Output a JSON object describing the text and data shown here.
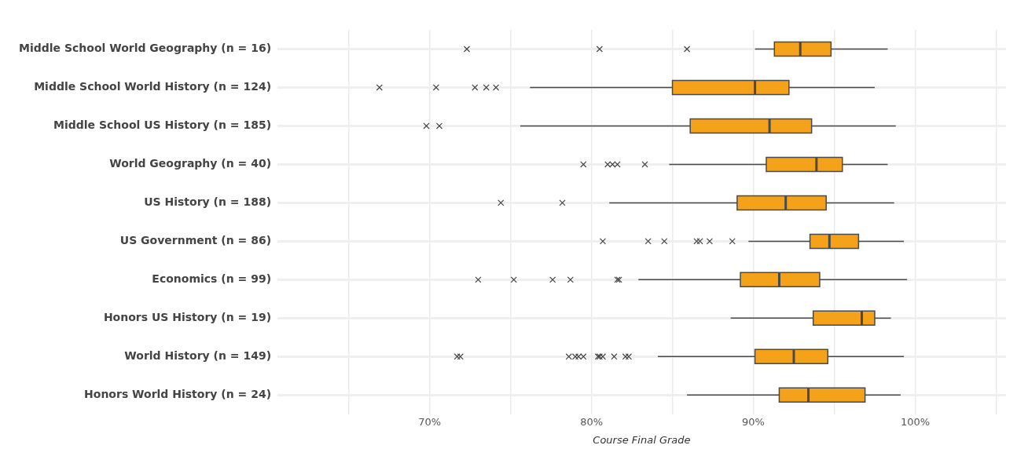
{
  "chart_data": {
    "type": "box",
    "orientation": "horizontal",
    "xlabel": "Course Final Grade",
    "categories": [
      "Middle School World Geography (n = 16)",
      "Middle School World History (n = 124)",
      "Middle School US History (n = 185)",
      "World Geography (n = 40)",
      "US History (n = 188)",
      "US Government (n = 86)",
      "Economics (n = 99)",
      "Honors US History (n = 19)",
      "World History (n = 149)",
      "Honors World History (n = 24)"
    ],
    "color": "#f5a21b",
    "marker": "cross",
    "boxes": [
      {
        "low": 90.1,
        "q1": 91.3,
        "median": 92.9,
        "q3": 94.8,
        "high": 98.3,
        "outliers": [
          72.3,
          80.5,
          85.9
        ]
      },
      {
        "low": 76.2,
        "q1": 85.0,
        "median": 90.1,
        "q3": 92.2,
        "high": 97.5,
        "outliers": [
          66.9,
          70.4,
          72.8,
          73.5,
          74.1
        ]
      },
      {
        "low": 75.6,
        "q1": 86.1,
        "median": 91.0,
        "q3": 93.6,
        "high": 98.8,
        "outliers": [
          69.8,
          70.6
        ]
      },
      {
        "low": 84.8,
        "q1": 90.8,
        "median": 93.9,
        "q3": 95.5,
        "high": 98.3,
        "outliers": [
          79.5,
          81.0,
          81.3,
          81.6,
          83.3
        ]
      },
      {
        "low": 81.1,
        "q1": 89.0,
        "median": 92.0,
        "q3": 94.5,
        "high": 98.7,
        "outliers": [
          74.4,
          78.2
        ]
      },
      {
        "low": 89.7,
        "q1": 93.5,
        "median": 94.7,
        "q3": 96.5,
        "high": 99.3,
        "outliers": [
          80.7,
          83.5,
          84.5,
          86.5,
          86.7,
          87.3,
          88.7
        ]
      },
      {
        "low": 82.9,
        "q1": 89.2,
        "median": 91.6,
        "q3": 94.1,
        "high": 99.5,
        "outliers": [
          73.0,
          75.2,
          77.6,
          78.7,
          81.6,
          81.7
        ]
      },
      {
        "low": 88.6,
        "q1": 93.7,
        "median": 96.7,
        "q3": 97.5,
        "high": 98.5
      },
      {
        "low": 84.1,
        "q1": 90.1,
        "median": 92.5,
        "q3": 94.6,
        "high": 99.3,
        "outliers": [
          71.7,
          71.9,
          78.6,
          79.0,
          79.2,
          79.5,
          80.4,
          80.5,
          80.7,
          81.4,
          82.1,
          82.3
        ]
      },
      {
        "low": 85.9,
        "q1": 91.6,
        "median": 93.4,
        "q3": 96.9,
        "high": 99.1
      }
    ],
    "xlim": [
      60.6,
      105.6
    ],
    "xticks": [
      {
        "value": 65,
        "label": null
      },
      {
        "value": 70,
        "label": "70%"
      },
      {
        "value": 75,
        "label": null
      },
      {
        "value": 80,
        "label": "80%"
      },
      {
        "value": 85,
        "label": null
      },
      {
        "value": 90,
        "label": "90%"
      },
      {
        "value": 95,
        "label": null
      },
      {
        "value": 100,
        "label": "100%"
      },
      {
        "value": 105,
        "label": null
      }
    ],
    "grid": true
  }
}
